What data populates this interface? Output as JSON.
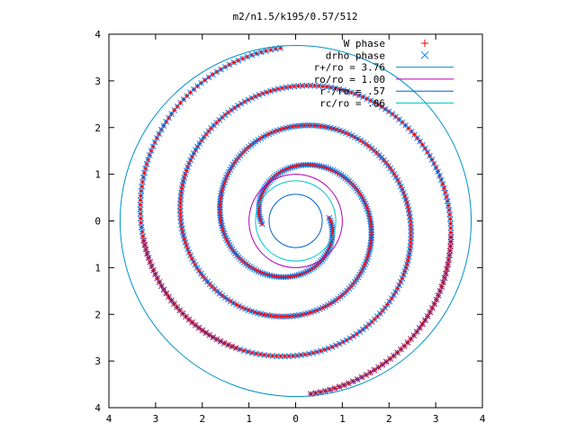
{
  "chart_data": {
    "type": "scatter",
    "title": "m2/n1.5/k195/0.57/512",
    "xlabel": "",
    "ylabel": "",
    "xlim": [
      -4,
      4
    ],
    "ylim": [
      -4,
      4
    ],
    "xticks": [
      -4,
      -3,
      -2,
      -1,
      0,
      1,
      2,
      3,
      4
    ],
    "yticks": [
      -4,
      -3,
      -2,
      -1,
      0,
      1,
      2,
      3,
      4
    ],
    "xtick_labels": [
      "4",
      "3",
      "2",
      "1",
      "0",
      "1",
      "2",
      "3",
      "4"
    ],
    "ytick_labels": [
      "4",
      "3",
      "2",
      "1",
      "0",
      "1",
      "2",
      "3",
      "4"
    ],
    "grid": false,
    "legend_position": "top-right",
    "series": [
      {
        "name": "W phase",
        "kind": "points",
        "marker": "plus",
        "color": "#ff0000",
        "description_note": "two-armed spiral (m=2) from r≈0.7 to r≈3.7"
      },
      {
        "name": "drho phase",
        "kind": "points",
        "marker": "cross",
        "color": "#0080ff",
        "description_note": "overlaps W phase in inner region"
      },
      {
        "name": "r+/ro = 3.76",
        "kind": "circle",
        "r": 3.76,
        "color": "#0091c8"
      },
      {
        "name": "ro/ro = 1.00",
        "kind": "circle",
        "r": 1.0,
        "color": "#b000b0"
      },
      {
        "name": "r-/ro = .57",
        "kind": "circle",
        "r": 0.57,
        "color": "#0064c8"
      },
      {
        "name": "rc/ro = .86",
        "kind": "circle",
        "r": 0.86,
        "color": "#00c8c8"
      }
    ],
    "spiral": {
      "arms": 2,
      "r_inner": 0.72,
      "r_outer": 3.72,
      "theta_start_deg": 185,
      "turns": 1.75,
      "inner_points_per_arm": 260,
      "outer_points_per_arm": 70
    }
  }
}
